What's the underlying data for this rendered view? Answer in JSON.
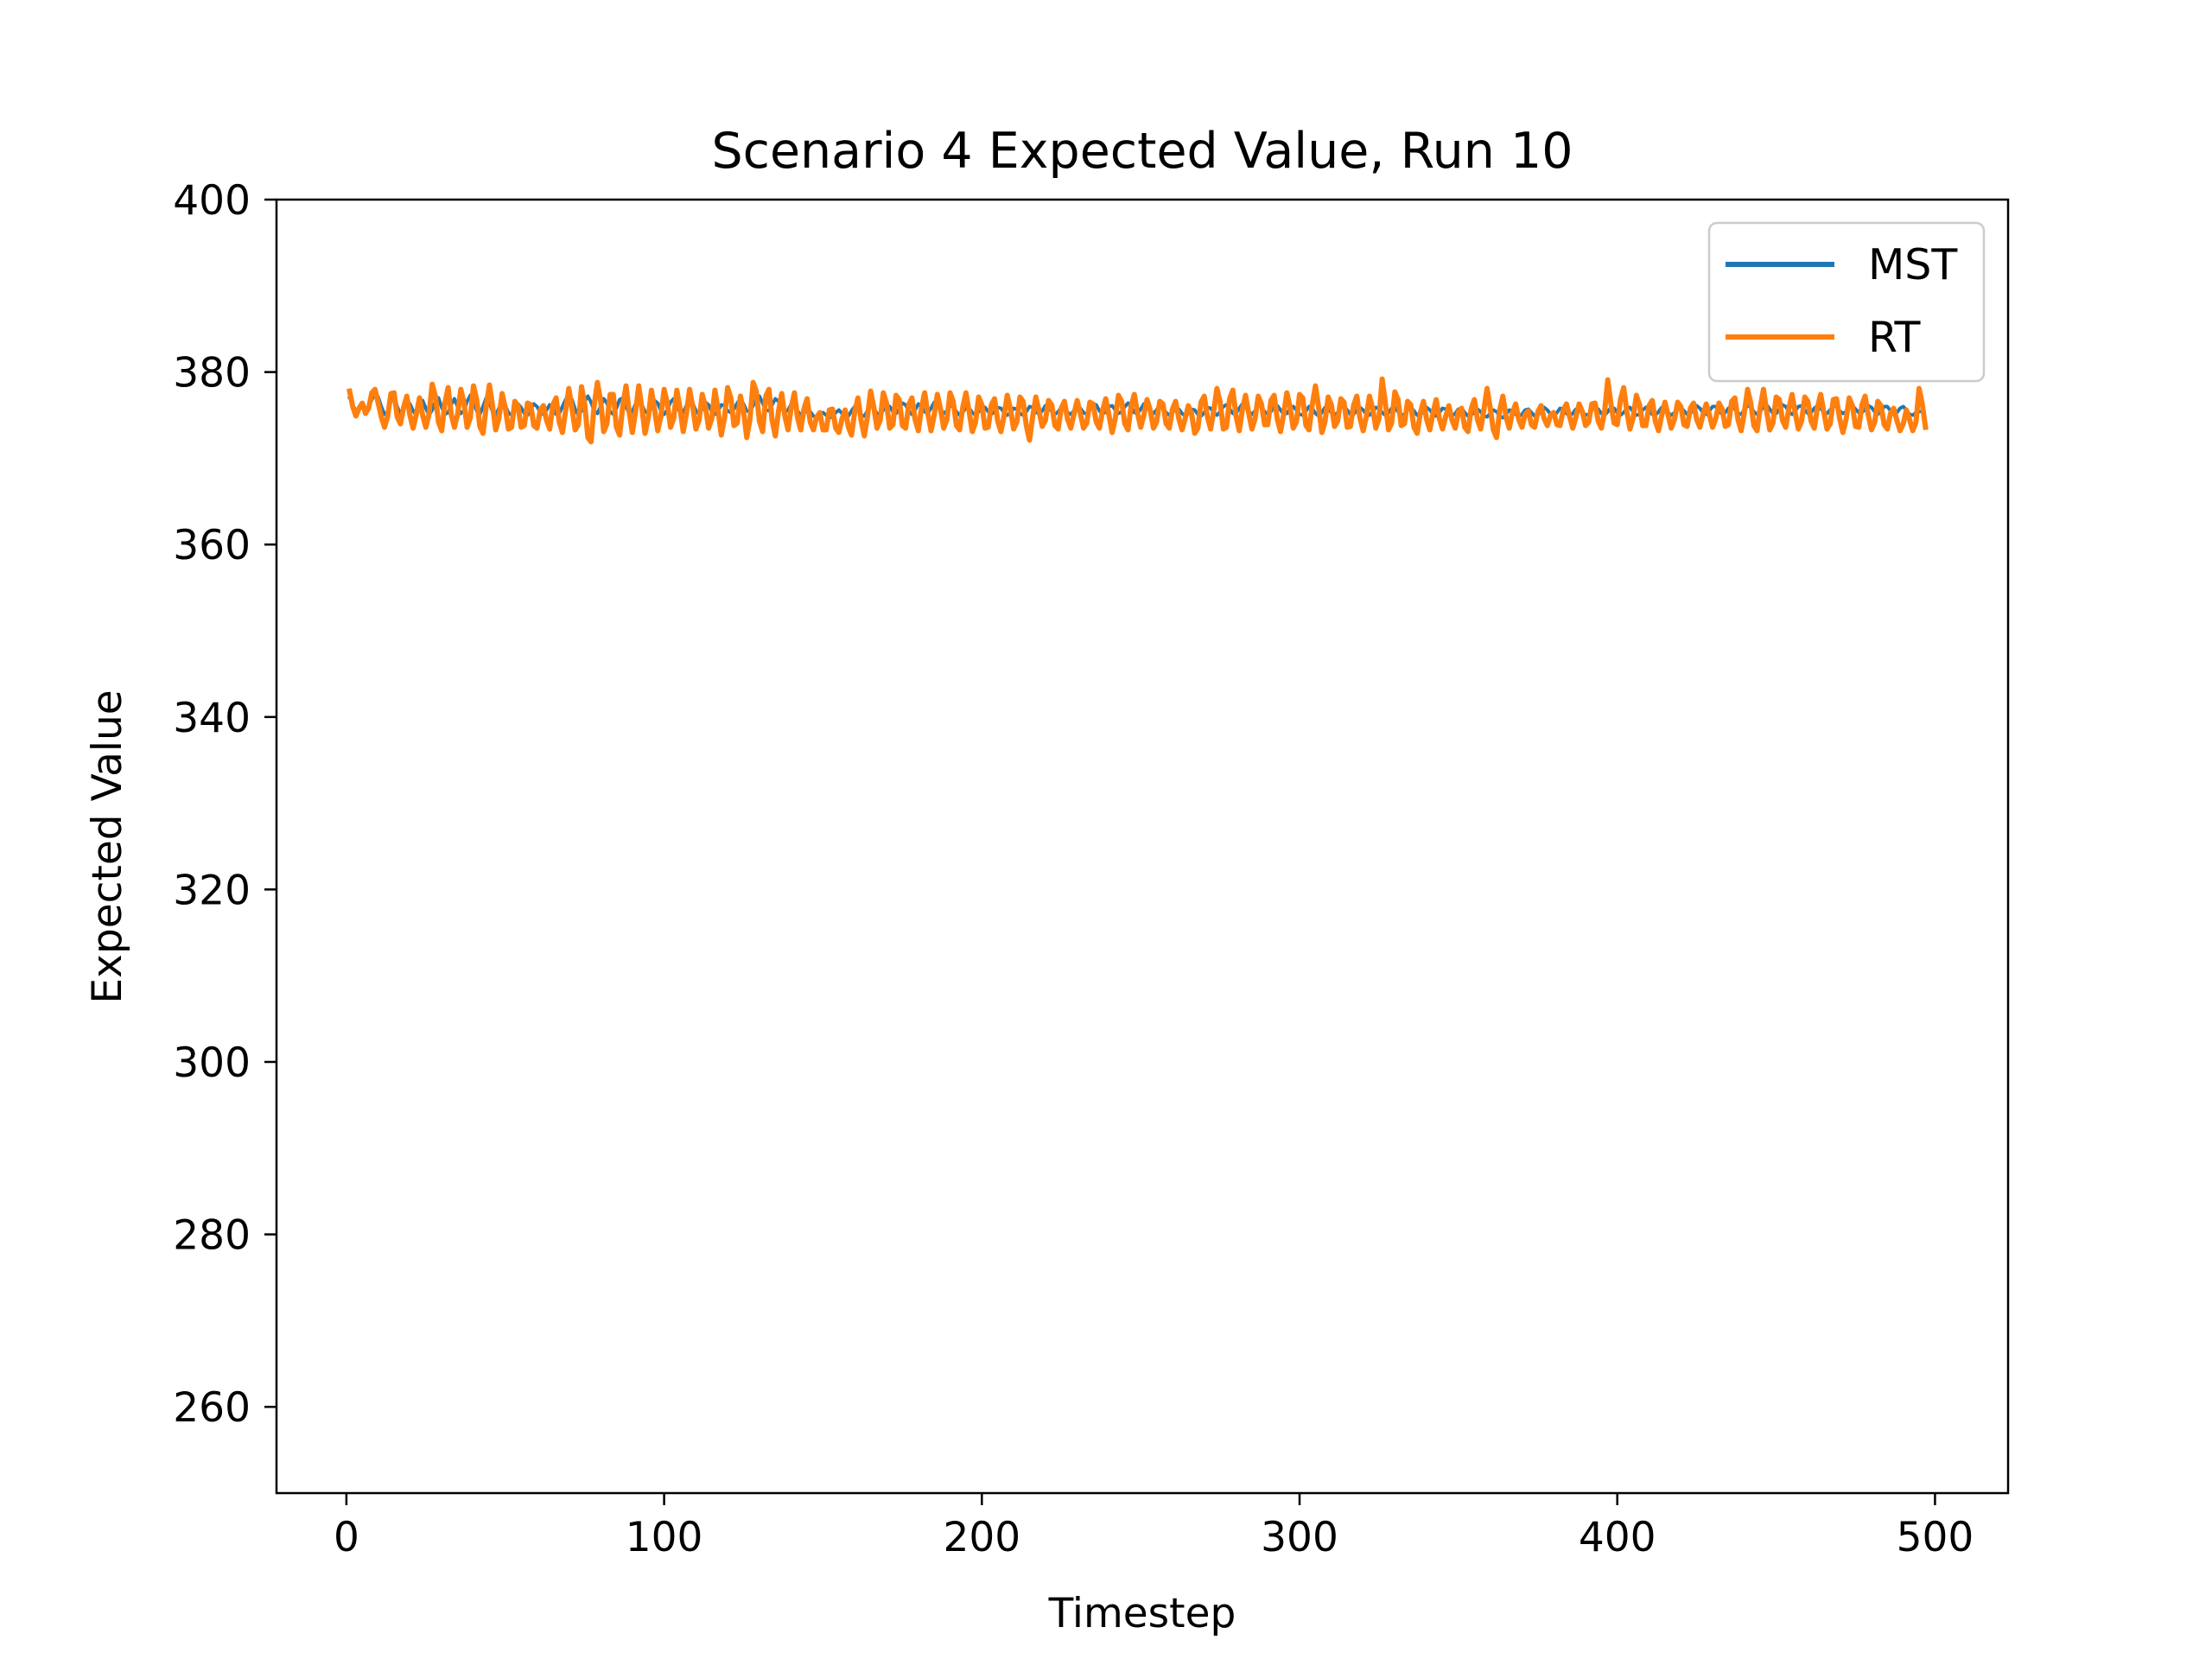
{
  "chart_data": {
    "type": "line",
    "title": "Scenario 4 Expected Value, Run 10",
    "xlabel": "Timestep",
    "ylabel": "Expected Value",
    "xlim": [
      -22,
      523
    ],
    "ylim": [
      250,
      400
    ],
    "xticks": [
      0,
      100,
      200,
      300,
      400,
      500
    ],
    "xtick_labels": [
      "0",
      "100",
      "200",
      "300",
      "400",
      "500"
    ],
    "yticks": [
      260,
      280,
      300,
      320,
      340,
      360,
      380,
      400
    ],
    "ytick_labels": [
      "260",
      "280",
      "300",
      "320",
      "340",
      "360",
      "380",
      "400"
    ],
    "grid": false,
    "legend_position": "top-right",
    "x_start": 1,
    "x_step": 1,
    "series": [
      {
        "name": "MST",
        "color": "#1f77b4",
        "values": [
          377.0,
          376.2,
          375.5,
          375.9,
          376.4,
          375.7,
          376.0,
          376.8,
          377.6,
          377.1,
          376.0,
          375.1,
          375.4,
          376.6,
          377.3,
          376.0,
          375.1,
          375.6,
          376.8,
          376.3,
          375.5,
          375.0,
          375.9,
          376.7,
          375.8,
          375.0,
          375.6,
          376.6,
          377.0,
          375.9,
          375.1,
          375.3,
          376.2,
          376.9,
          376.0,
          375.2,
          375.5,
          376.6,
          377.3,
          376.5,
          375.5,
          375.1,
          376.0,
          377.0,
          376.5,
          375.4,
          375.0,
          375.8,
          376.6,
          376.1,
          375.3,
          375.0,
          375.6,
          376.3,
          375.9,
          375.2,
          375.0,
          375.7,
          376.3,
          376.0,
          375.3,
          375.1,
          375.6,
          376.2,
          375.8,
          375.1,
          375.2,
          376.0,
          376.8,
          377.4,
          376.8,
          375.7,
          375.0,
          375.5,
          376.6,
          377.2,
          376.5,
          375.5,
          375.2,
          376.0,
          376.9,
          376.4,
          375.4,
          375.1,
          375.8,
          376.8,
          377.0,
          376.0,
          375.2,
          375.4,
          376.3,
          376.9,
          376.2,
          375.4,
          375.2,
          375.9,
          376.7,
          376.4,
          375.5,
          375.1,
          375.6,
          376.5,
          376.9,
          376.1,
          375.3,
          375.3,
          376.1,
          376.8,
          376.4,
          375.5,
          375.1,
          375.7,
          376.5,
          376.2,
          375.4,
          375.1,
          375.5,
          376.2,
          376.1,
          375.5,
          375.3,
          375.7,
          376.4,
          376.9,
          376.3,
          375.5,
          375.4,
          376.1,
          376.9,
          377.2,
          376.4,
          375.6,
          375.5,
          376.2,
          376.9,
          376.6,
          375.8,
          375.3,
          375.6,
          376.3,
          376.2,
          375.5,
          375.0,
          375.2,
          375.6,
          375.4,
          374.9,
          374.7,
          375.0,
          375.3,
          375.0,
          374.7,
          374.8,
          375.3,
          375.6,
          375.2,
          374.8,
          374.9,
          375.5,
          376.0,
          375.6,
          375.0,
          374.9,
          375.5,
          376.1,
          375.8,
          375.2,
          375.0,
          375.6,
          376.2,
          376.0,
          375.4,
          375.2,
          375.7,
          376.4,
          376.2,
          375.5,
          375.1,
          375.6,
          376.3,
          376.0,
          375.4,
          375.2,
          375.8,
          376.5,
          376.4,
          375.7,
          375.2,
          375.5,
          376.1,
          376.0,
          375.4,
          375.0,
          375.3,
          375.9,
          375.8,
          375.3,
          375.0,
          375.4,
          376.0,
          375.9,
          375.4,
          375.1,
          375.4,
          375.9,
          375.8,
          375.3,
          375.0,
          375.3,
          375.8,
          375.7,
          375.2,
          375.0,
          375.4,
          376.0,
          375.9,
          375.4,
          375.1,
          375.5,
          376.1,
          376.0,
          375.4,
          375.1,
          375.4,
          375.9,
          375.8,
          375.3,
          375.1,
          375.5,
          376.0,
          375.8,
          375.3,
          375.1,
          375.6,
          376.3,
          376.2,
          375.5,
          375.1,
          375.4,
          376.0,
          376.1,
          375.6,
          375.2,
          375.4,
          376.0,
          376.4,
          375.9,
          375.3,
          375.2,
          375.7,
          376.3,
          376.1,
          375.5,
          375.2,
          375.6,
          376.1,
          375.9,
          375.3,
          375.0,
          375.3,
          375.8,
          375.7,
          375.2,
          374.9,
          375.2,
          375.7,
          375.6,
          375.1,
          374.9,
          375.3,
          375.9,
          375.8,
          375.3,
          375.0,
          375.4,
          376.0,
          376.2,
          375.7,
          375.2,
          375.2,
          375.8,
          376.3,
          376.0,
          375.4,
          375.1,
          375.5,
          376.1,
          376.0,
          375.4,
          375.1,
          375.4,
          376.0,
          376.1,
          375.6,
          375.1,
          375.2,
          375.7,
          376.0,
          375.6,
          375.1,
          375.0,
          375.5,
          376.0,
          375.8,
          375.2,
          374.9,
          375.3,
          375.9,
          375.8,
          375.3,
          375.0,
          375.3,
          375.9,
          376.0,
          375.6,
          375.1,
          375.1,
          375.6,
          375.9,
          375.6,
          375.1,
          375.0,
          375.4,
          375.9,
          375.8,
          375.3,
          375.0,
          375.3,
          375.8,
          375.9,
          375.4,
          375.0,
          375.1,
          375.6,
          375.9,
          375.5,
          375.0,
          375.0,
          375.5,
          375.9,
          375.6,
          375.1,
          374.9,
          375.3,
          375.8,
          375.7,
          375.2,
          374.9,
          375.2,
          375.7,
          375.8,
          375.3,
          374.9,
          375.0,
          375.4,
          375.7,
          375.4,
          374.9,
          374.8,
          375.2,
          375.6,
          375.4,
          374.9,
          374.7,
          375.1,
          375.6,
          375.5,
          375.1,
          374.8,
          375.1,
          375.6,
          375.7,
          375.3,
          374.9,
          375.0,
          375.5,
          375.9,
          375.6,
          375.1,
          374.9,
          375.3,
          375.8,
          375.7,
          375.2,
          374.9,
          375.2,
          375.7,
          375.8,
          375.4,
          375.0,
          375.1,
          375.6,
          376.0,
          375.7,
          375.2,
          375.0,
          375.4,
          375.9,
          375.8,
          375.3,
          375.0,
          375.3,
          375.8,
          375.9,
          375.4,
          375.0,
          375.1,
          375.6,
          375.9,
          375.6,
          375.1,
          375.0,
          375.4,
          375.9,
          375.8,
          375.3,
          375.0,
          375.3,
          375.8,
          375.9,
          375.5,
          375.1,
          375.2,
          375.7,
          376.1,
          375.8,
          375.3,
          375.1,
          375.5,
          376.0,
          376.0,
          375.5,
          375.1,
          375.3,
          375.8,
          376.1,
          375.7,
          375.2,
          375.1,
          375.6,
          376.1,
          376.0,
          375.4,
          375.1,
          375.4,
          376.0,
          376.2,
          375.7,
          375.2,
          375.2,
          375.7,
          376.2,
          376.0,
          375.4,
          375.1,
          375.5,
          376.0,
          376.1,
          375.6,
          375.2,
          375.3,
          375.8,
          376.1,
          375.8,
          375.3,
          375.2,
          375.6,
          376.1,
          376.0,
          375.5,
          375.2,
          375.4,
          375.9,
          376.1,
          375.7,
          375.3,
          375.3,
          375.7,
          376.1,
          375.9,
          375.4,
          375.1,
          375.5,
          376.0,
          376.0,
          375.5,
          375.1,
          375.3,
          375.8,
          376.0,
          375.6,
          375.1,
          375.0,
          375.3,
          375.4
        ]
      },
      {
        "name": "RT",
        "color": "#ff7f0e",
        "values": [
          377.8,
          376.0,
          374.9,
          375.8,
          376.4,
          375.2,
          375.8,
          377.6,
          378.0,
          376.4,
          374.8,
          373.6,
          374.9,
          377.5,
          377.6,
          374.8,
          374.0,
          375.9,
          377.2,
          375.0,
          373.5,
          375.1,
          377.0,
          375.0,
          373.6,
          375.1,
          378.6,
          377.2,
          374.2,
          373.2,
          376.4,
          378.2,
          375.1,
          373.6,
          375.1,
          378.0,
          376.5,
          373.6,
          374.7,
          378.4,
          376.8,
          373.7,
          372.9,
          376.0,
          378.5,
          376.1,
          373.3,
          374.6,
          377.5,
          375.9,
          373.4,
          373.6,
          376.6,
          376.1,
          373.6,
          373.8,
          376.4,
          376.2,
          373.8,
          373.5,
          375.6,
          376.1,
          374.4,
          373.4,
          376.2,
          377.0,
          374.2,
          373.0,
          375.5,
          378.1,
          375.8,
          373.3,
          373.9,
          378.3,
          376.3,
          372.4,
          371.9,
          376.2,
          378.8,
          376.7,
          373.1,
          374.0,
          377.4,
          377.4,
          373.6,
          372.7,
          376.1,
          378.4,
          375.4,
          373.0,
          375.4,
          378.4,
          375.8,
          372.9,
          374.7,
          377.9,
          375.6,
          373.2,
          374.9,
          378.0,
          376.4,
          373.6,
          374.6,
          377.9,
          375.8,
          373.1,
          375.1,
          378.0,
          376.0,
          373.4,
          374.4,
          377.4,
          376.0,
          373.5,
          374.6,
          377.9,
          375.5,
          372.7,
          374.7,
          378.2,
          377.0,
          373.8,
          374.1,
          377.2,
          375.5,
          372.4,
          374.5,
          378.8,
          377.8,
          374.3,
          373.1,
          377.2,
          378.0,
          374.4,
          372.6,
          375.5,
          377.5,
          374.9,
          373.3,
          375.9,
          377.6,
          374.7,
          373.3,
          375.7,
          376.9,
          374.2,
          373.3,
          374.8,
          375.3,
          373.3,
          373.3,
          375.6,
          375.7,
          373.5,
          373.0,
          374.6,
          375.6,
          373.6,
          372.7,
          375.4,
          377.0,
          374.4,
          372.6,
          374.8,
          377.8,
          375.9,
          373.5,
          374.4,
          377.6,
          376.4,
          373.5,
          373.9,
          377.3,
          376.8,
          373.8,
          373.5,
          376.2,
          377.0,
          374.5,
          373.2,
          375.8,
          377.6,
          375.2,
          373.2,
          375.0,
          377.4,
          375.7,
          373.5,
          374.5,
          377.6,
          376.6,
          373.8,
          373.3,
          375.9,
          377.6,
          375.4,
          373.1,
          374.2,
          377.1,
          376.2,
          373.5,
          373.6,
          376.2,
          376.9,
          374.3,
          373.1,
          374.9,
          377.3,
          375.7,
          373.4,
          374.2,
          377.1,
          376.6,
          373.8,
          372.1,
          374.8,
          377.1,
          375.5,
          373.7,
          374.4,
          376.7,
          376.2,
          373.8,
          373.4,
          375.8,
          376.6,
          374.5,
          373.5,
          375.1,
          376.7,
          375.2,
          373.5,
          374.1,
          376.5,
          376.3,
          374.2,
          373.5,
          375.5,
          376.9,
          375.0,
          373.0,
          374.6,
          377.3,
          376.6,
          374.0,
          373.3,
          376.1,
          377.4,
          375.2,
          373.6,
          375.0,
          376.8,
          375.6,
          373.5,
          374.2,
          376.6,
          376.3,
          374.0,
          373.5,
          375.7,
          376.6,
          374.6,
          373.3,
          374.6,
          376.1,
          375.2,
          372.9,
          373.5,
          376.5,
          377.2,
          374.8,
          373.4,
          375.5,
          378.1,
          376.5,
          373.4,
          373.6,
          376.9,
          377.9,
          374.9,
          373.2,
          375.6,
          377.3,
          375.2,
          373.4,
          374.6,
          377.2,
          376.3,
          373.9,
          373.9,
          376.7,
          377.3,
          374.5,
          373.1,
          375.1,
          377.6,
          376.0,
          373.5,
          374.2,
          377.4,
          377.0,
          373.8,
          373.3,
          376.2,
          378.4,
          375.9,
          373.0,
          374.2,
          377.1,
          376.2,
          373.7,
          374.3,
          376.9,
          376.5,
          373.6,
          373.7,
          376.1,
          377.2,
          374.7,
          373.2,
          374.8,
          377.2,
          375.8,
          373.5,
          374.6,
          379.2,
          376.4,
          373.3,
          374.1,
          377.7,
          376.8,
          373.8,
          374.0,
          376.6,
          376.2,
          373.6,
          372.9,
          375.2,
          376.6,
          374.5,
          373.3,
          375.3,
          376.8,
          374.6,
          373.4,
          374.9,
          376.1,
          374.4,
          373.5,
          375.4,
          375.8,
          373.6,
          373.1,
          375.7,
          376.8,
          374.5,
          373.4,
          375.6,
          378.1,
          375.9,
          373.3,
          372.4,
          375.6,
          377.2,
          374.8,
          373.5,
          375.3,
          376.3,
          374.5,
          373.6,
          375.1,
          375.5,
          373.9,
          373.6,
          375.4,
          376.1,
          374.6,
          373.8,
          375.0,
          375.3,
          373.9,
          373.8,
          375.6,
          376.3,
          374.8,
          373.5,
          374.8,
          376.3,
          375.4,
          373.8,
          374.2,
          376.3,
          376.4,
          374.3,
          373.5,
          375.4,
          379.1,
          376.3,
          374.1,
          373.9,
          376.8,
          378.2,
          375.4,
          373.4,
          374.7,
          377.3,
          376.2,
          373.8,
          373.8,
          376.1,
          376.7,
          374.3,
          373.2,
          375.0,
          376.5,
          375.0,
          373.5,
          374.5,
          376.5,
          376.0,
          373.9,
          373.7,
          375.8,
          376.4,
          374.5,
          373.6,
          375.1,
          376.3,
          375.0,
          373.6,
          374.6,
          376.4,
          375.7,
          373.7,
          373.9,
          376.6,
          377.0,
          374.5,
          373.2,
          375.3,
          378.0,
          376.4,
          373.8,
          373.2,
          375.9,
          378.0,
          375.5,
          373.3,
          374.1,
          377.1,
          376.8,
          374.4,
          373.6,
          375.8,
          377.4,
          375.3,
          373.4,
          374.3,
          377.1,
          376.6,
          374.3,
          373.5,
          375.9,
          377.4,
          375.4,
          373.4,
          374.0,
          376.8,
          376.9,
          374.6,
          373.0,
          374.5,
          377.0,
          376.1,
          373.7,
          373.6,
          376.2,
          377.2,
          375.0,
          373.3,
          374.2,
          376.6,
          376.1,
          373.9,
          373.4,
          375.2,
          375.8,
          374.4,
          373.2,
          374.0,
          375.6,
          374.5,
          373.2,
          374.2,
          378.1,
          376.3,
          373.6
        ]
      }
    ]
  }
}
